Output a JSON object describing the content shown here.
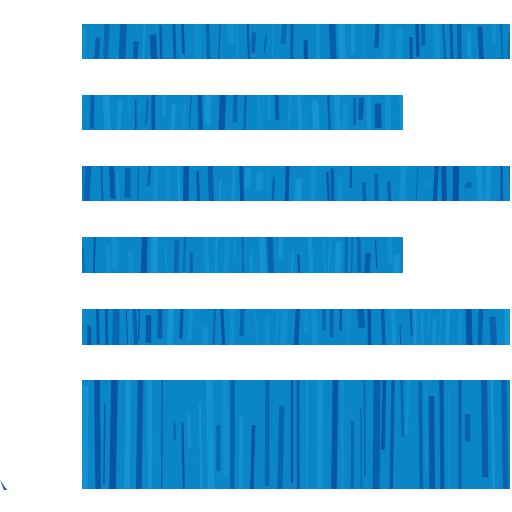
{
  "icon": {
    "name": "text-align-left-icon",
    "description_name": "document-lines-icon",
    "colors": {
      "base": "#0a85c6",
      "dark": "#0852a3",
      "light": "#1a9ad6",
      "background": "#ffffff"
    },
    "lines": [
      {
        "name": "line-1",
        "length": "long"
      },
      {
        "name": "line-2",
        "length": "short"
      },
      {
        "name": "line-3",
        "length": "long"
      },
      {
        "name": "line-4",
        "length": "short"
      },
      {
        "name": "line-5",
        "length": "long"
      },
      {
        "name": "line-6",
        "length": "block"
      }
    ]
  }
}
